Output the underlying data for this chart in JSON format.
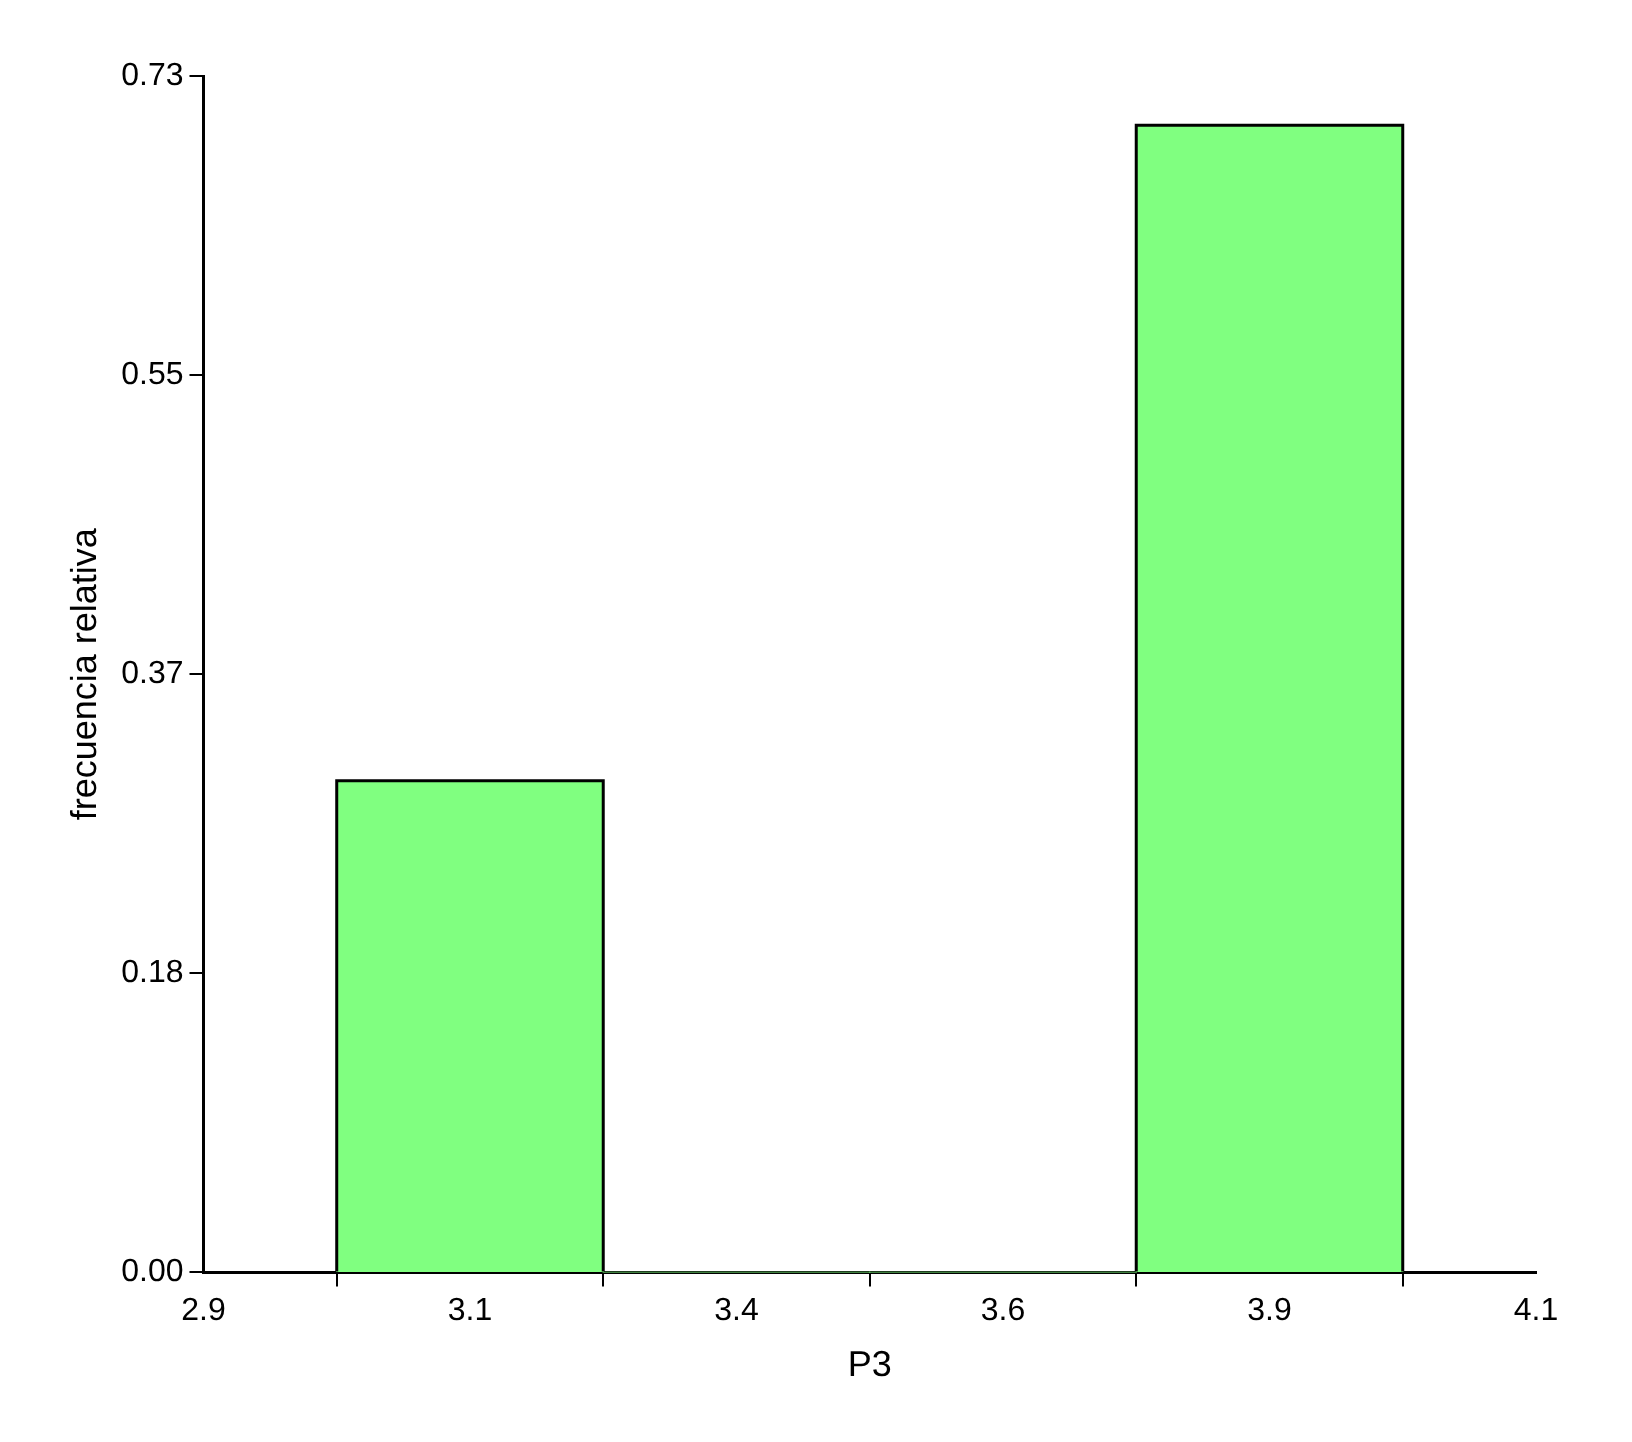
{
  "chart_data": {
    "type": "histogram",
    "xlabel": "P3",
    "ylabel": "frecuencia relativa",
    "bins": [
      3.02,
      3.26,
      3.5,
      3.74,
      3.98
    ],
    "values": [
      0.3,
      0,
      0,
      0.7
    ],
    "color": "#80ff80",
    "xlim": [
      2.9,
      4.1
    ],
    "xticks": [
      {
        "value": 2.9,
        "label": "2.9"
      },
      {
        "value": 3.14,
        "label": "3.1"
      },
      {
        "value": 3.38,
        "label": "3.4"
      },
      {
        "value": 3.62,
        "label": "3.6"
      },
      {
        "value": 3.86,
        "label": "3.9"
      },
      {
        "value": 4.1,
        "label": "4.1"
      }
    ],
    "ylim": [
      0,
      0.73
    ],
    "yticks": [
      {
        "value": 0,
        "label": "0.00"
      },
      {
        "value": 0.1825,
        "label": "0.18"
      },
      {
        "value": 0.365,
        "label": "0.37"
      },
      {
        "value": 0.5475,
        "label": "0.55"
      },
      {
        "value": 0.73,
        "label": "0.73"
      }
    ],
    "grid": false,
    "legend": false
  }
}
